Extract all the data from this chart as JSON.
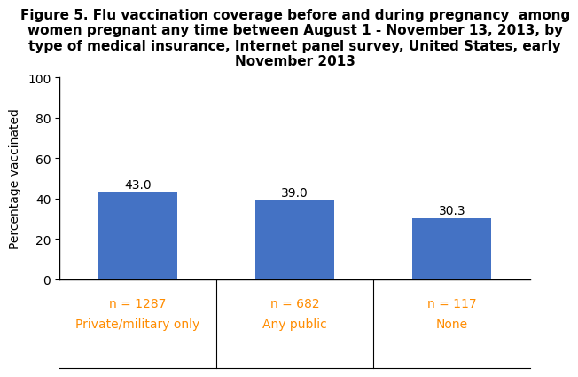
{
  "title": "Figure 5. Flu vaccination coverage before and during pregnancy  among\nwomen pregnant any time between August 1 - November 13, 2013, by\ntype of medical insurance, Internet panel survey, United States, early\nNovember 2013",
  "categories": [
    "Private/military only",
    "Any public",
    "None"
  ],
  "n_labels": [
    "n = 1287",
    "n = 682",
    "n = 117"
  ],
  "values": [
    43.0,
    39.0,
    30.3
  ],
  "bar_color": "#4472C4",
  "ylabel": "Percentage vaccinated",
  "ylim": [
    0,
    100
  ],
  "yticks": [
    0,
    20,
    40,
    60,
    80,
    100
  ],
  "title_fontsize": 11,
  "label_fontsize": 10,
  "tick_fontsize": 10,
  "n_label_color": "#FF8C00",
  "value_label_color": "#000000",
  "background_color": "#FFFFFF"
}
